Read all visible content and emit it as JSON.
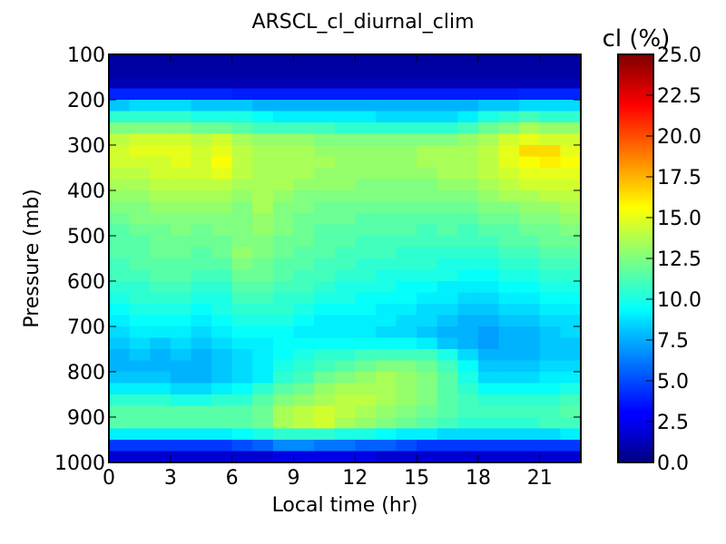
{
  "chart_data": {
    "type": "heatmap",
    "title": "ARSCL_cl_diurnal_clim",
    "xlabel": "Local time (hr)",
    "ylabel": "Pressure (mb)",
    "x_ticks": [
      "0",
      "3",
      "6",
      "9",
      "12",
      "15",
      "18",
      "21"
    ],
    "y_ticks": [
      "100",
      "200",
      "300",
      "400",
      "500",
      "600",
      "700",
      "800",
      "900",
      "1000"
    ],
    "colorbar_label": "cl (%)",
    "colorbar_ticks": [
      "0.0",
      "2.5",
      "5.0",
      "7.5",
      "10.0",
      "12.5",
      "15.0",
      "17.5",
      "20.0",
      "22.5",
      "25.0"
    ],
    "xlim": [
      0,
      23
    ],
    "ylim": [
      1000,
      100
    ],
    "clim": [
      0,
      25
    ],
    "colormap": "jet",
    "x": [
      0,
      1,
      2,
      3,
      4,
      5,
      6,
      7,
      8,
      9,
      10,
      11,
      12,
      13,
      14,
      15,
      16,
      17,
      18,
      19,
      20,
      21,
      22
    ],
    "y": [
      112.5,
      137.5,
      162.5,
      187.5,
      212.5,
      237.5,
      262.5,
      287.5,
      312.5,
      337.5,
      362.5,
      387.5,
      412.5,
      437.5,
      462.5,
      487.5,
      512.5,
      537.5,
      562.5,
      587.5,
      612.5,
      637.5,
      662.5,
      687.5,
      712.5,
      737.5,
      762.5,
      787.5,
      812.5,
      837.5,
      862.5,
      887.5,
      912.5,
      937.5,
      962.5,
      987.5
    ],
    "values": [
      [
        0.8,
        0.8,
        0.8,
        0.8,
        0.8,
        0.8,
        0.8,
        0.8,
        0.8,
        0.8,
        0.8,
        0.8,
        0.8,
        0.8,
        0.8,
        0.8,
        0.8,
        0.8,
        0.8,
        0.8,
        0.8,
        0.8,
        0.8
      ],
      [
        0.9,
        0.9,
        0.9,
        0.9,
        0.9,
        0.9,
        0.9,
        0.9,
        0.9,
        0.9,
        0.9,
        0.9,
        0.9,
        0.9,
        0.9,
        0.9,
        0.9,
        0.9,
        0.9,
        0.9,
        0.9,
        0.9,
        0.9
      ],
      [
        1.3,
        1.3,
        1.3,
        1.3,
        1.3,
        1.3,
        1.3,
        1.3,
        1.3,
        1.3,
        1.3,
        1.3,
        1.3,
        1.3,
        1.3,
        1.3,
        1.3,
        1.3,
        1.3,
        1.3,
        1.3,
        1.3,
        1.3
      ],
      [
        4.0,
        4.0,
        4.0,
        4.0,
        4.0,
        4.0,
        3.8,
        3.8,
        3.8,
        3.8,
        3.8,
        3.8,
        3.8,
        3.8,
        3.8,
        3.8,
        3.8,
        3.8,
        3.8,
        3.8,
        4.0,
        4.0,
        4.0
      ],
      [
        8.0,
        8.5,
        8.5,
        8.5,
        8.0,
        8.0,
        8.0,
        7.5,
        7.5,
        7.5,
        7.5,
        7.5,
        7.5,
        7.5,
        7.5,
        7.5,
        7.5,
        7.5,
        8.0,
        8.0,
        8.5,
        8.5,
        8.5
      ],
      [
        10.5,
        10.5,
        10.5,
        10.5,
        10.0,
        10.0,
        10.0,
        9.5,
        9.0,
        9.0,
        9.0,
        9.0,
        9.0,
        8.5,
        8.5,
        8.5,
        8.5,
        9.0,
        10.0,
        10.5,
        11.0,
        10.5,
        10.5
      ],
      [
        12.5,
        12.5,
        12.5,
        12.5,
        12.0,
        12.0,
        11.5,
        11.0,
        11.0,
        11.0,
        11.0,
        10.5,
        10.5,
        10.5,
        10.5,
        10.5,
        10.5,
        11.0,
        12.0,
        12.5,
        13.5,
        13.0,
        13.0
      ],
      [
        14.0,
        14.5,
        14.5,
        14.5,
        14.0,
        14.5,
        13.5,
        13.0,
        13.0,
        13.0,
        12.5,
        12.5,
        12.5,
        12.5,
        12.5,
        12.5,
        12.5,
        13.0,
        13.5,
        14.5,
        15.0,
        14.5,
        14.5
      ],
      [
        14.5,
        15.0,
        15.0,
        15.0,
        14.5,
        15.0,
        14.0,
        13.5,
        13.5,
        13.5,
        13.0,
        13.0,
        13.0,
        13.0,
        13.0,
        13.5,
        13.5,
        13.5,
        14.0,
        15.0,
        16.5,
        16.5,
        15.0
      ],
      [
        14.5,
        14.5,
        14.5,
        15.0,
        14.5,
        15.5,
        14.0,
        13.5,
        13.5,
        13.5,
        13.5,
        13.0,
        13.0,
        13.0,
        13.0,
        13.5,
        13.5,
        13.5,
        14.0,
        15.0,
        15.5,
        16.0,
        15.5
      ],
      [
        14.0,
        14.0,
        14.5,
        14.5,
        14.5,
        15.0,
        14.0,
        13.5,
        13.5,
        13.5,
        13.0,
        13.0,
        13.0,
        13.0,
        13.0,
        13.0,
        13.5,
        13.5,
        14.0,
        14.5,
        15.0,
        15.0,
        15.0
      ],
      [
        13.5,
        13.5,
        14.0,
        14.0,
        14.0,
        14.0,
        13.5,
        13.5,
        13.5,
        13.0,
        13.0,
        13.0,
        12.5,
        12.5,
        12.5,
        12.5,
        13.0,
        13.0,
        13.5,
        14.0,
        14.5,
        14.5,
        14.5
      ],
      [
        13.0,
        13.0,
        13.5,
        13.5,
        13.5,
        13.5,
        13.0,
        13.5,
        13.0,
        12.5,
        12.5,
        12.5,
        12.5,
        12.5,
        12.5,
        12.5,
        12.5,
        12.5,
        13.0,
        13.5,
        13.5,
        14.0,
        14.0
      ],
      [
        12.5,
        12.5,
        13.0,
        13.0,
        13.0,
        13.0,
        12.5,
        13.5,
        12.5,
        12.5,
        12.0,
        12.0,
        12.0,
        12.0,
        12.0,
        12.0,
        12.0,
        12.0,
        12.5,
        12.5,
        13.0,
        13.0,
        13.5
      ],
      [
        12.0,
        12.5,
        12.5,
        12.5,
        12.5,
        12.5,
        12.5,
        13.0,
        12.5,
        12.0,
        12.0,
        12.0,
        11.5,
        11.5,
        11.5,
        11.5,
        11.5,
        11.5,
        12.0,
        12.0,
        12.5,
        12.5,
        13.0
      ],
      [
        11.5,
        12.0,
        12.0,
        12.5,
        12.0,
        12.5,
        12.5,
        13.0,
        12.5,
        12.0,
        11.5,
        11.5,
        11.5,
        11.5,
        11.5,
        11.0,
        11.5,
        11.0,
        11.5,
        11.5,
        12.0,
        12.0,
        12.5
      ],
      [
        11.5,
        11.5,
        12.0,
        12.0,
        12.0,
        12.0,
        12.5,
        12.5,
        12.0,
        12.0,
        11.5,
        11.5,
        11.0,
        11.0,
        11.0,
        11.0,
        11.0,
        11.0,
        11.0,
        11.5,
        11.5,
        12.0,
        12.0
      ],
      [
        11.5,
        11.5,
        12.0,
        12.0,
        11.5,
        12.0,
        13.0,
        12.5,
        12.0,
        11.5,
        11.5,
        11.0,
        11.0,
        11.0,
        10.5,
        10.5,
        10.5,
        10.5,
        10.5,
        11.0,
        11.0,
        11.5,
        11.5
      ],
      [
        11.0,
        11.5,
        11.5,
        11.5,
        11.5,
        11.5,
        12.5,
        12.0,
        11.5,
        11.5,
        11.0,
        11.0,
        10.5,
        10.5,
        10.5,
        10.5,
        10.0,
        10.0,
        10.0,
        10.5,
        10.5,
        11.0,
        11.0
      ],
      [
        11.0,
        11.0,
        11.5,
        11.5,
        11.0,
        11.0,
        12.0,
        12.0,
        11.5,
        11.0,
        11.0,
        10.5,
        10.5,
        10.0,
        10.0,
        10.0,
        10.0,
        9.5,
        9.5,
        10.0,
        10.0,
        10.5,
        10.5
      ],
      [
        10.5,
        10.5,
        11.0,
        11.0,
        10.5,
        10.5,
        11.5,
        11.5,
        11.0,
        11.0,
        10.5,
        10.0,
        10.0,
        10.0,
        9.5,
        9.5,
        9.0,
        9.0,
        9.0,
        9.5,
        9.5,
        10.0,
        10.0
      ],
      [
        10.0,
        10.5,
        10.5,
        10.5,
        10.0,
        10.0,
        11.0,
        11.0,
        10.5,
        10.5,
        10.0,
        10.0,
        9.5,
        9.5,
        9.5,
        9.0,
        9.0,
        8.5,
        8.5,
        9.0,
        9.0,
        9.5,
        9.5
      ],
      [
        9.5,
        10.0,
        10.0,
        10.0,
        9.5,
        10.0,
        10.5,
        10.5,
        10.5,
        10.0,
        9.5,
        9.5,
        9.5,
        9.0,
        9.0,
        8.5,
        8.5,
        8.0,
        8.0,
        8.5,
        8.5,
        9.0,
        9.0
      ],
      [
        9.0,
        9.5,
        9.5,
        9.5,
        9.0,
        9.5,
        10.0,
        10.0,
        10.0,
        9.5,
        9.0,
        9.0,
        9.0,
        9.0,
        8.5,
        8.5,
        8.0,
        7.5,
        7.5,
        8.0,
        8.0,
        8.5,
        8.5
      ],
      [
        8.5,
        9.0,
        9.0,
        9.0,
        8.5,
        9.0,
        9.5,
        9.5,
        9.5,
        9.0,
        9.0,
        9.0,
        9.0,
        8.5,
        8.5,
        8.0,
        7.5,
        7.5,
        7.0,
        7.5,
        7.5,
        8.0,
        8.5
      ],
      [
        8.0,
        8.5,
        8.0,
        8.5,
        8.0,
        8.5,
        9.0,
        9.0,
        9.5,
        9.5,
        9.5,
        9.5,
        9.5,
        9.5,
        9.5,
        9.0,
        8.0,
        7.5,
        7.0,
        7.5,
        7.5,
        8.0,
        8.0
      ],
      [
        7.5,
        8.0,
        7.5,
        8.0,
        7.5,
        8.0,
        8.5,
        9.0,
        9.5,
        10.0,
        10.5,
        10.5,
        11.0,
        11.0,
        11.0,
        11.0,
        10.0,
        8.5,
        7.5,
        7.5,
        7.5,
        8.0,
        8.0
      ],
      [
        7.5,
        7.5,
        7.5,
        7.5,
        7.5,
        8.0,
        8.5,
        9.0,
        10.0,
        10.5,
        11.0,
        11.5,
        12.0,
        12.5,
        12.5,
        12.0,
        11.0,
        9.5,
        8.0,
        8.0,
        8.0,
        8.5,
        8.5
      ],
      [
        8.0,
        8.0,
        8.0,
        7.5,
        7.5,
        8.0,
        8.5,
        9.0,
        10.5,
        11.0,
        12.0,
        12.5,
        13.0,
        13.5,
        13.0,
        12.5,
        11.5,
        10.0,
        8.5,
        8.5,
        8.5,
        9.0,
        9.0
      ],
      [
        9.0,
        9.0,
        9.0,
        8.5,
        8.5,
        9.0,
        9.5,
        10.5,
        11.5,
        12.0,
        13.0,
        13.5,
        13.5,
        13.5,
        13.0,
        12.5,
        11.5,
        10.5,
        9.5,
        9.5,
        9.5,
        9.5,
        10.0
      ],
      [
        10.5,
        10.5,
        10.5,
        10.0,
        10.0,
        10.5,
        10.5,
        11.5,
        12.5,
        13.0,
        13.5,
        14.0,
        14.0,
        13.5,
        13.0,
        12.5,
        11.5,
        11.0,
        10.5,
        10.5,
        10.5,
        10.5,
        11.0
      ],
      [
        11.5,
        11.5,
        11.5,
        11.5,
        11.5,
        11.5,
        11.5,
        12.0,
        13.5,
        14.0,
        14.5,
        14.0,
        13.5,
        13.0,
        12.5,
        12.0,
        11.5,
        11.0,
        11.0,
        11.0,
        11.0,
        11.0,
        11.5
      ],
      [
        11.5,
        11.5,
        11.5,
        11.5,
        11.5,
        11.5,
        11.5,
        12.0,
        13.5,
        14.0,
        14.5,
        13.5,
        13.0,
        12.5,
        12.0,
        11.5,
        11.0,
        10.5,
        10.5,
        10.5,
        10.5,
        11.0,
        11.0
      ],
      [
        9.0,
        9.0,
        9.0,
        9.0,
        9.0,
        9.0,
        9.5,
        10.0,
        10.5,
        10.5,
        10.5,
        10.0,
        10.0,
        9.5,
        9.0,
        9.0,
        8.5,
        8.5,
        8.5,
        8.5,
        8.5,
        8.5,
        9.0
      ],
      [
        4.5,
        4.5,
        4.5,
        4.5,
        4.5,
        4.5,
        5.0,
        5.5,
        6.5,
        6.5,
        6.0,
        6.0,
        5.5,
        5.5,
        5.0,
        4.5,
        4.5,
        4.5,
        4.5,
        4.5,
        4.5,
        4.5,
        4.5
      ],
      [
        2.0,
        2.0,
        2.0,
        2.0,
        2.0,
        2.0,
        2.0,
        2.0,
        2.5,
        2.5,
        2.5,
        2.5,
        2.5,
        2.0,
        2.0,
        2.0,
        2.0,
        2.0,
        2.0,
        2.0,
        2.0,
        2.0,
        2.0
      ]
    ]
  }
}
